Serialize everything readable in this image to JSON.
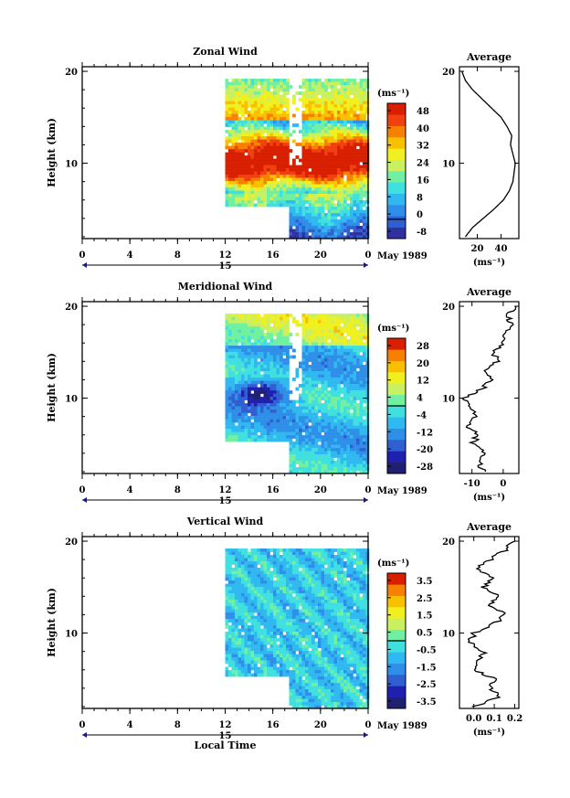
{
  "chart_data": [
    {
      "type": "heatmap",
      "title": "Zonal Wind",
      "xlabel": "",
      "ylabel": "Height (km)",
      "x_ticks": [
        "0",
        "4",
        "8",
        "12",
        "16",
        "20",
        "0"
      ],
      "y_ticks": [
        "10",
        "20"
      ],
      "date_label": "15",
      "month_label": "May 1989",
      "colorbar": {
        "unit": "(ms⁻¹)",
        "ticks": [
          "48",
          "40",
          "32",
          "24",
          "16",
          "8",
          "0",
          "-8"
        ],
        "range": [
          -8,
          48
        ],
        "palette": [
          "#3030a0",
          "#2f5fd0",
          "#2f8fe8",
          "#30b8f0",
          "#40e0e0",
          "#70f0a0",
          "#c8f060",
          "#f0f020",
          "#f8c000",
          "#f88000",
          "#f04010",
          "#d82000"
        ]
      },
      "data_extent": {
        "x_start_hour": 12,
        "x_end_hour": 24,
        "y_start_km": 5.5,
        "y_end_km": 19.2
      },
      "profile": {
        "title": "Average",
        "xlabel": "(ms⁻¹)",
        "x_ticks": [
          "20",
          "40"
        ],
        "xlim": [
          5,
          55
        ],
        "heights_km": [
          2,
          3,
          4,
          5,
          6,
          7,
          8,
          9,
          10,
          11,
          12,
          13,
          14,
          15,
          16,
          17,
          18,
          19,
          20
        ],
        "values": [
          10,
          16,
          25,
          34,
          42,
          47,
          50,
          51,
          52,
          50,
          48,
          49,
          45,
          40,
          32,
          24,
          16,
          10,
          7
        ]
      }
    },
    {
      "type": "heatmap",
      "title": "Meridional Wind",
      "xlabel": "",
      "ylabel": "Height (km)",
      "x_ticks": [
        "0",
        "4",
        "8",
        "12",
        "16",
        "20",
        "0"
      ],
      "y_ticks": [
        "10",
        "20"
      ],
      "date_label": "15",
      "month_label": "May 1989",
      "colorbar": {
        "unit": "(ms⁻¹)",
        "ticks": [
          "28",
          "20",
          "12",
          "4",
          "-4",
          "-12",
          "-20",
          "-28"
        ],
        "range": [
          -28,
          28
        ],
        "palette": [
          "#202070",
          "#2020b0",
          "#2f5fd0",
          "#2f8fe8",
          "#30b8f0",
          "#40e0e0",
          "#70f0a0",
          "#c8f060",
          "#f0f020",
          "#f8c000",
          "#f88000",
          "#d82000"
        ]
      },
      "data_extent": {
        "x_start_hour": 12,
        "x_end_hour": 24,
        "y_start_km": 5.5,
        "y_end_km": 19.2
      },
      "profile": {
        "title": "Average",
        "xlabel": "(ms⁻¹)",
        "x_ticks": [
          "-10",
          "0"
        ],
        "xlim": [
          -14,
          5
        ],
        "heights_km": [
          2,
          3,
          4,
          5,
          6,
          7,
          8,
          9,
          10,
          11,
          12,
          13,
          14,
          15,
          16,
          17,
          18,
          19,
          20
        ],
        "values": [
          -6,
          -8,
          -5,
          -10,
          -8,
          -12,
          -9,
          -11,
          -13,
          -7,
          -4,
          -5,
          -2,
          -3,
          0,
          0,
          3,
          1,
          4
        ]
      }
    },
    {
      "type": "heatmap",
      "title": "Vertical Wind",
      "xlabel": "Local Time",
      "ylabel": "Height (km)",
      "x_ticks": [
        "0",
        "4",
        "8",
        "12",
        "16",
        "20",
        "0"
      ],
      "y_ticks": [
        "10",
        "20"
      ],
      "date_label": "15",
      "month_label": "May 1989",
      "colorbar": {
        "unit": "(ms⁻¹)",
        "ticks": [
          "3.5",
          "2.5",
          "1.5",
          "0.5",
          "-0.5",
          "-1.5",
          "-2.5",
          "-3.5"
        ],
        "range": [
          -3.5,
          3.5
        ],
        "palette": [
          "#202070",
          "#2020b0",
          "#2f5fd0",
          "#2f8fe8",
          "#30b8f0",
          "#40e0e0",
          "#70f0a0",
          "#c8f060",
          "#f0f020",
          "#f8c000",
          "#f88000",
          "#d82000"
        ]
      },
      "data_extent": {
        "x_start_hour": 12,
        "x_end_hour": 24,
        "y_start_km": 5.5,
        "y_end_km": 19.2
      },
      "profile": {
        "title": "Average",
        "xlabel": "(ms⁻¹)",
        "x_ticks": [
          "0.0",
          "0.1",
          "0.2"
        ],
        "xlim": [
          -0.07,
          0.22
        ],
        "heights_km": [
          2,
          3,
          4,
          5,
          6,
          7,
          8,
          9,
          10,
          11,
          12,
          13,
          14,
          15,
          16,
          17,
          18,
          19,
          20
        ],
        "values": [
          0.0,
          0.12,
          0.08,
          0.1,
          0.0,
          0.03,
          0.05,
          -0.02,
          0.0,
          0.1,
          0.15,
          0.08,
          0.12,
          0.05,
          0.1,
          0.02,
          0.08,
          0.15,
          0.2
        ]
      }
    }
  ]
}
